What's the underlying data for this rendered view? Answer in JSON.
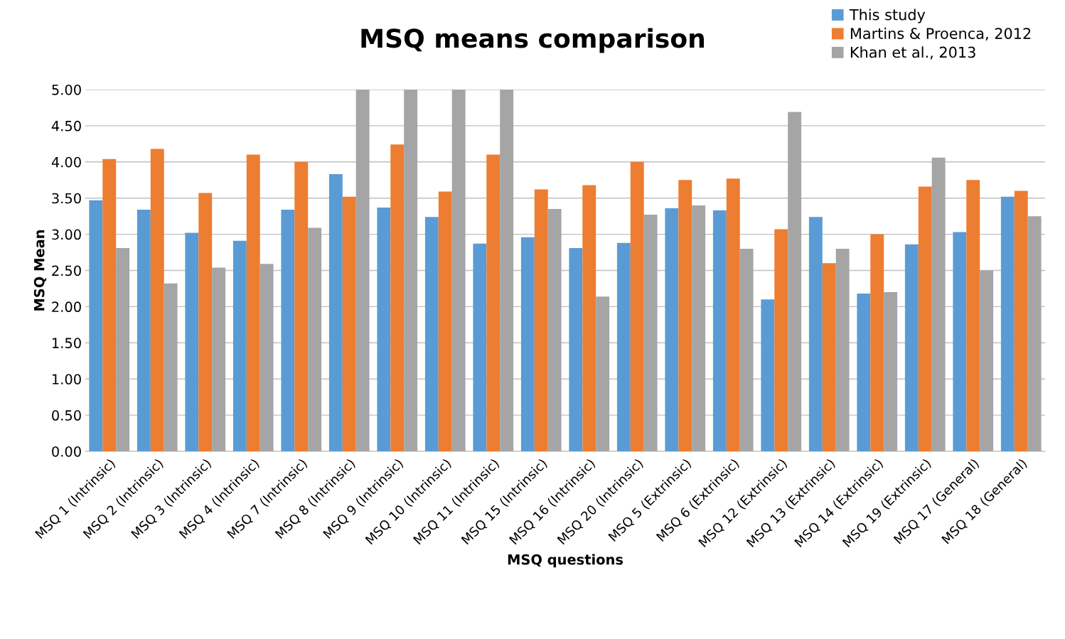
{
  "chart_data": {
    "type": "bar",
    "title": "MSQ means comparison",
    "xlabel": "MSQ questions",
    "ylabel": "MSQ Mean",
    "categories": [
      "MSQ 1 (Intrinsic)",
      "MSQ 2 (Intrinsic)",
      "MSQ 3 (Intrinsic)",
      "MSQ 4 (Intrinsic)",
      "MSQ 7 (Intrinsic)",
      "MSQ 8 (Intrinsic)",
      "MSQ 9 (Intrinsic)",
      "MSQ 10 (Intrinsic)",
      "MSQ 11 (Intrinsic)",
      "MSQ 15 (Intrinsic)",
      "MSQ 16 (Intrinsic)",
      "MSQ 20 (Intrinsic)",
      "MSQ 5 (Extrinsic)",
      "MSQ 6 (Extrinsic)",
      "MSQ 12 (Extrinsic)",
      "MSQ 13 (Extrinsic)",
      "MSQ 14 (Extrinsic)",
      "MSQ 19 (Extrinsic)",
      "MSQ 17 (General)",
      "MSQ 18 (General)"
    ],
    "series": [
      {
        "name": "This study",
        "color": "#5b9bd5",
        "values": [
          3.47,
          3.34,
          3.02,
          2.91,
          3.34,
          3.83,
          3.37,
          3.24,
          2.87,
          2.96,
          2.81,
          2.88,
          3.36,
          3.33,
          2.1,
          3.24,
          2.18,
          2.86,
          3.03,
          3.52
        ]
      },
      {
        "name": "Martins & Proenca, 2012",
        "color": "#ed7d31",
        "values": [
          4.04,
          4.18,
          3.57,
          4.1,
          4.0,
          3.52,
          4.24,
          3.59,
          4.1,
          3.62,
          3.68,
          4.0,
          3.75,
          3.77,
          3.07,
          2.6,
          3.0,
          3.66,
          3.75,
          3.6
        ]
      },
      {
        "name": "Khan et al., 2013",
        "color": "#a5a5a5",
        "values": [
          2.81,
          2.32,
          2.54,
          2.59,
          3.09,
          5.0,
          5.0,
          5.0,
          5.0,
          3.35,
          2.14,
          3.27,
          3.4,
          2.8,
          4.69,
          2.8,
          2.2,
          4.06,
          2.5,
          3.25
        ]
      }
    ],
    "ylim": [
      0,
      5
    ],
    "yticks": [
      {
        "value": 0,
        "label": "0.00"
      },
      {
        "value": 0.5,
        "label": "0.50"
      },
      {
        "value": 1,
        "label": "1.00"
      },
      {
        "value": 1.5,
        "label": "1.50"
      },
      {
        "value": 2,
        "label": "2.00"
      },
      {
        "value": 2.5,
        "label": "2.50"
      },
      {
        "value": 3,
        "label": "3.00"
      },
      {
        "value": 3.5,
        "label": "3.50"
      },
      {
        "value": 4,
        "label": "4.00"
      },
      {
        "value": 4.5,
        "label": "4.50"
      },
      {
        "value": 5,
        "label": "5.00"
      }
    ],
    "grid": "y",
    "legend": "top right"
  }
}
